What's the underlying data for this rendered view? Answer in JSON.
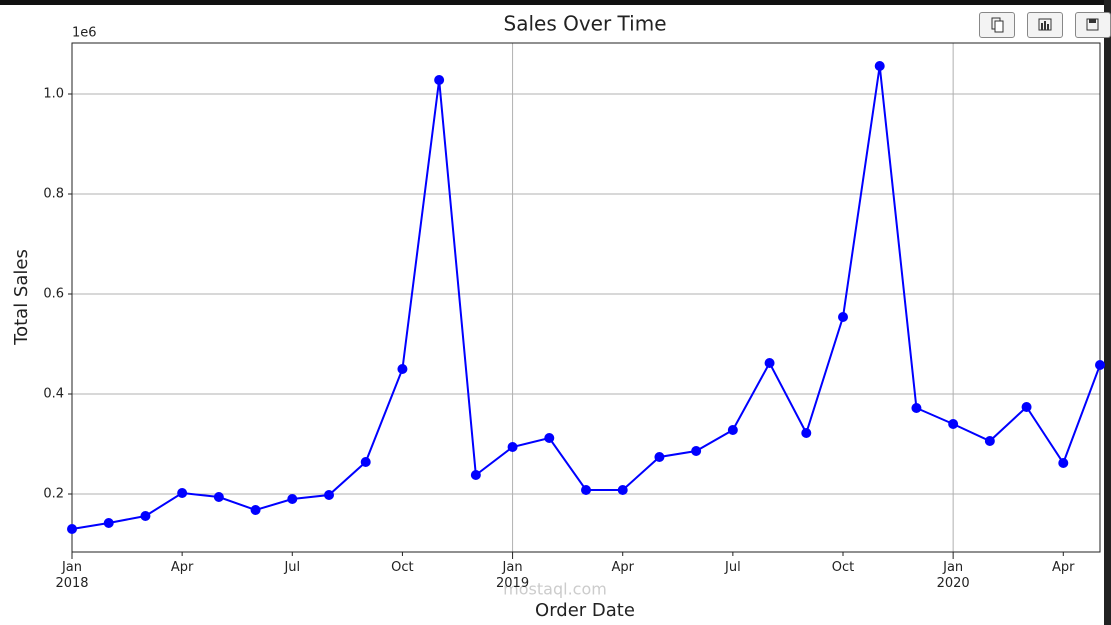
{
  "chart_data": {
    "type": "line",
    "title": "Sales Over Time",
    "xlabel": "Order Date",
    "ylabel": "Total Sales",
    "offset_label": "1e6",
    "watermark": "mostaql.com",
    "x": [
      "2018-01",
      "2018-02",
      "2018-03",
      "2018-04",
      "2018-05",
      "2018-06",
      "2018-07",
      "2018-08",
      "2018-09",
      "2018-10",
      "2018-11",
      "2018-12",
      "2019-01",
      "2019-02",
      "2019-03",
      "2019-04",
      "2019-05",
      "2019-06",
      "2019-07",
      "2019-08",
      "2019-09",
      "2019-10",
      "2019-11",
      "2019-12",
      "2020-01",
      "2020-02",
      "2020-03",
      "2020-04",
      "2020-05"
    ],
    "series": [
      {
        "name": "Total Sales",
        "color": "#0000ff",
        "values": [
          0.13,
          0.142,
          0.156,
          0.202,
          0.194,
          0.168,
          0.19,
          0.198,
          0.264,
          0.45,
          1.028,
          0.238,
          0.294,
          0.312,
          0.208,
          0.208,
          0.274,
          0.286,
          0.328,
          0.462,
          0.322,
          0.554,
          1.056,
          0.372,
          0.34,
          0.306,
          0.374,
          0.262,
          0.458
        ]
      }
    ],
    "xlim": [
      "2018-01",
      "2020-05"
    ],
    "xticks": [
      {
        "value": "2018-01",
        "label": "Jan\n2018",
        "major": true
      },
      {
        "value": "2018-04",
        "label": "Apr"
      },
      {
        "value": "2018-07",
        "label": "Jul"
      },
      {
        "value": "2018-10",
        "label": "Oct"
      },
      {
        "value": "2019-01",
        "label": "Jan\n2019",
        "major": true
      },
      {
        "value": "2019-04",
        "label": "Apr"
      },
      {
        "value": "2019-07",
        "label": "Jul"
      },
      {
        "value": "2019-10",
        "label": "Oct"
      },
      {
        "value": "2020-01",
        "label": "Jan\n2020",
        "major": true
      },
      {
        "value": "2020-04",
        "label": "Apr"
      }
    ],
    "ylim": [
      0.084,
      1.102
    ],
    "yticks": [
      0.2,
      0.4,
      0.6,
      0.8,
      {
        "value": 1,
        "label": "1.0"
      }
    ],
    "grid": true
  }
}
